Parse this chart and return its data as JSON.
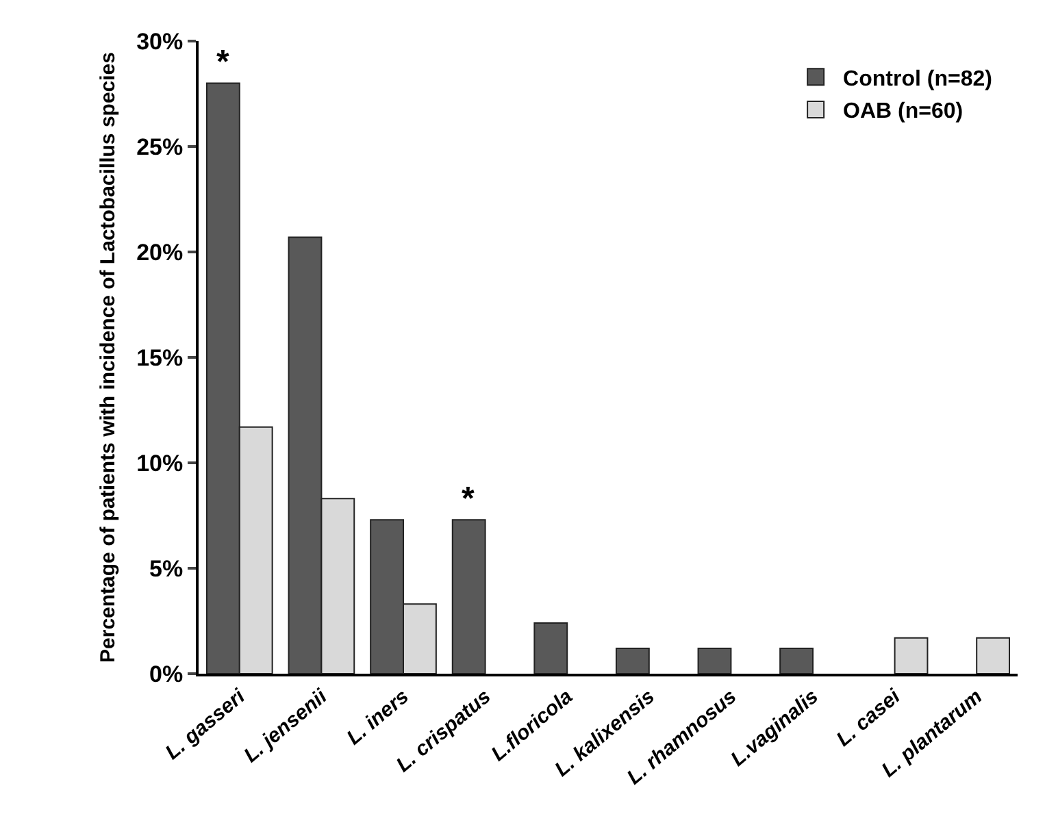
{
  "chart_data": {
    "type": "bar",
    "ylabel": "Percentage of patients with incidence of Lactobacillus species",
    "categories": [
      "L. gasseri",
      "L. jensenii",
      "L. iners",
      "L. crispatus",
      "L.floricola",
      "L. kalixensis",
      "L. rhamnosus",
      "L.vaginalis",
      "L. casei",
      "L. plantarum"
    ],
    "series": [
      {
        "name": "Control (n=82)",
        "color": "#595959",
        "values": [
          28.0,
          20.7,
          7.3,
          7.3,
          2.4,
          1.2,
          1.2,
          1.2,
          null,
          null
        ]
      },
      {
        "name": "OAB (n=60)",
        "color": "#d9d9d9",
        "values": [
          11.7,
          8.3,
          3.3,
          null,
          null,
          null,
          null,
          null,
          1.7,
          1.7
        ]
      }
    ],
    "ylim": [
      0,
      30
    ],
    "yticks": [
      {
        "value": 0,
        "label": "0%"
      },
      {
        "value": 5,
        "label": "5%"
      },
      {
        "value": 10,
        "label": "10%"
      },
      {
        "value": 15,
        "label": "15%"
      },
      {
        "value": 20,
        "label": "20%"
      },
      {
        "value": 25,
        "label": "25%"
      },
      {
        "value": 30,
        "label": "30%"
      }
    ],
    "annotations": [
      {
        "text": "*",
        "x": "L. gasseri",
        "y": 28.0
      },
      {
        "text": "*",
        "x": "L. crispatus",
        "y": 7.3
      }
    ],
    "grid": false,
    "legend": "top right"
  }
}
